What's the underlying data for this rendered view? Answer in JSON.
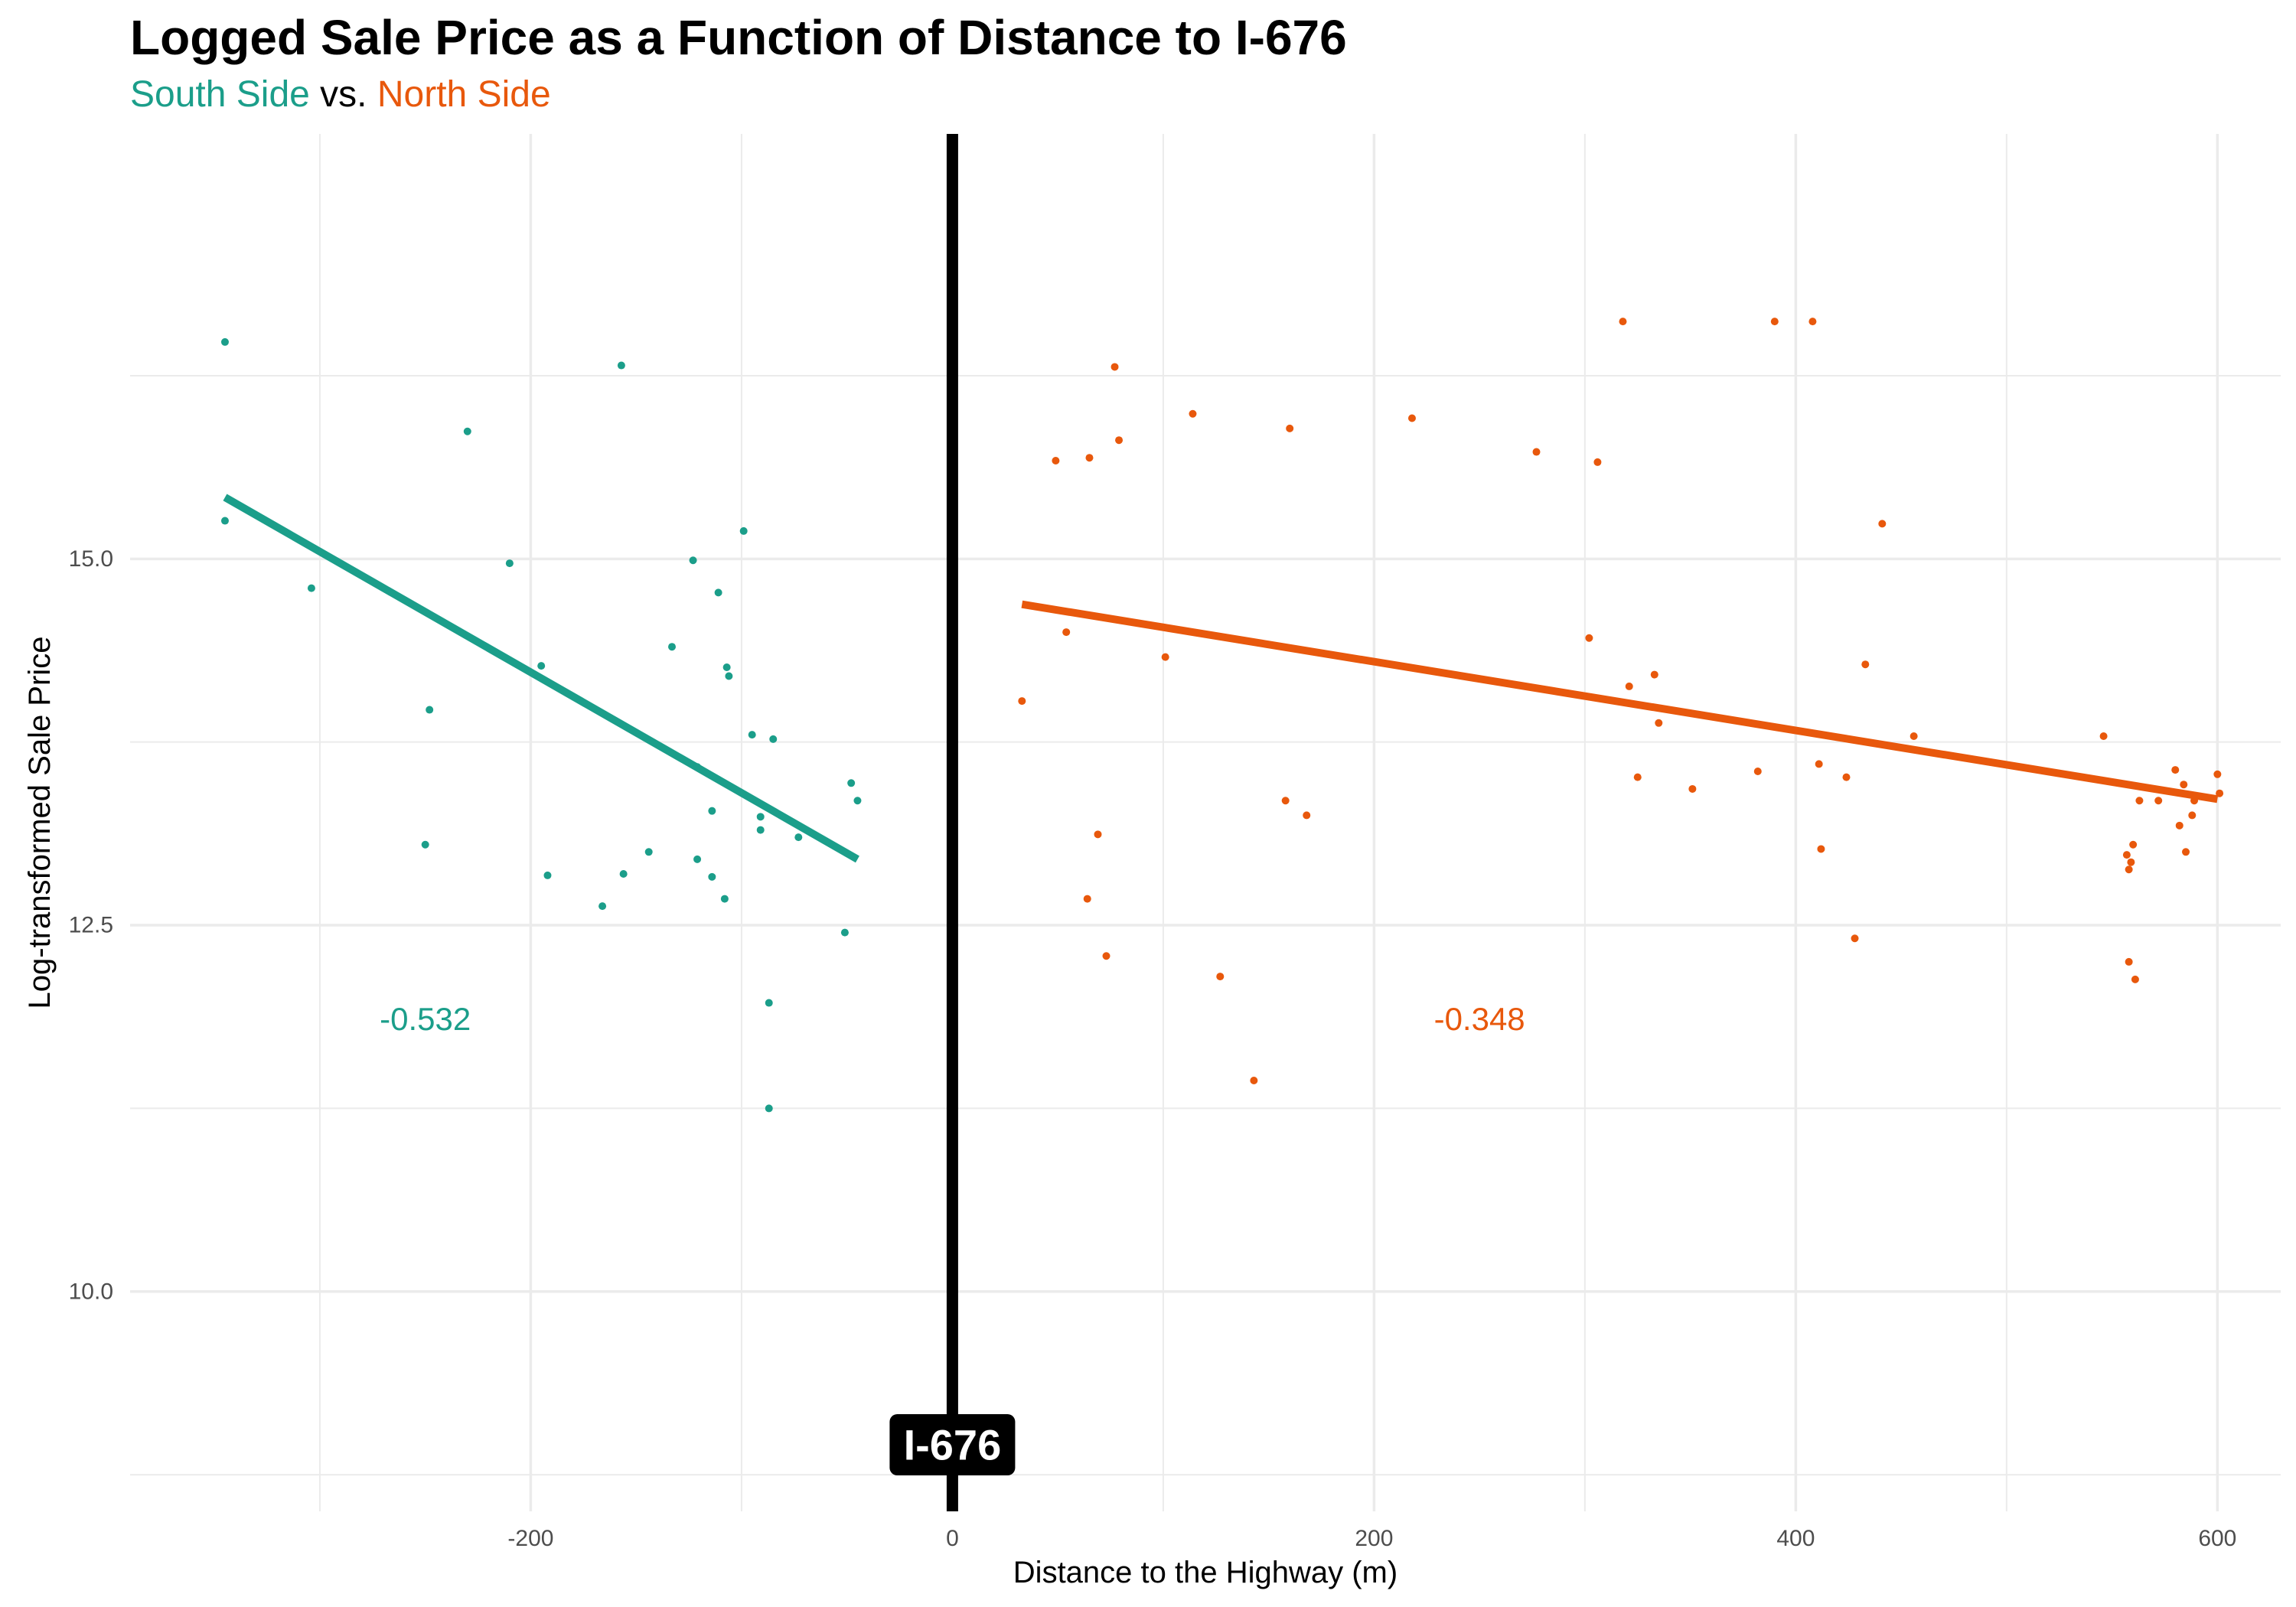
{
  "title": "Logged Sale Price as a Function of Distance to I-676",
  "subtitle": {
    "south": "South Side",
    "vs": " vs. ",
    "north": "North Side"
  },
  "colors": {
    "south": "#1b9e8a",
    "north": "#e8580c",
    "highway": "#000000",
    "grid": "#ebebeb"
  },
  "chart_data": {
    "type": "scatter",
    "title": "Logged Sale Price as a Function of Distance to I-676",
    "xlabel": "Distance to the Highway (m)",
    "ylabel": "Log-transformed Sale Price",
    "xlim": [
      -390,
      630
    ],
    "ylim": [
      8.5,
      17.9
    ],
    "x_ticks": [
      -200,
      0,
      200,
      400,
      600
    ],
    "x_tick_labels": [
      "-200",
      "0",
      "200",
      "400",
      "600"
    ],
    "y_ticks": [
      10.0,
      12.5,
      15.0
    ],
    "y_tick_labels": [
      "10.0",
      "12.5",
      "15.0"
    ],
    "grid": true,
    "cutoff": {
      "x": 0,
      "label": "I-676"
    },
    "series": [
      {
        "name": "South Side",
        "color": "#1b9e8a",
        "slope_label": "-0.532",
        "slope_label_pos": [
          -250,
          11.86
        ],
        "fit": {
          "x": [
            -345,
            -45
          ],
          "y": [
            15.42,
            12.95
          ]
        },
        "points": [
          [
            -345,
            16.48
          ],
          [
            -345,
            15.26
          ],
          [
            -304,
            14.8
          ],
          [
            -248,
            13.97
          ],
          [
            -250,
            13.05
          ],
          [
            -230,
            15.87
          ],
          [
            -210,
            14.97
          ],
          [
            -195,
            14.27
          ],
          [
            -192,
            12.84
          ],
          [
            -166,
            12.63
          ],
          [
            -157,
            16.32
          ],
          [
            -156,
            12.85
          ],
          [
            -144,
            13.0
          ],
          [
            -133,
            14.4
          ],
          [
            -123,
            14.99
          ],
          [
            -121,
            13.58
          ],
          [
            -121,
            12.95
          ],
          [
            -114,
            13.28
          ],
          [
            -114,
            12.83
          ],
          [
            -111,
            14.77
          ],
          [
            -108,
            12.68
          ],
          [
            -107,
            14.26
          ],
          [
            -106,
            14.2
          ],
          [
            -99,
            15.19
          ],
          [
            -95,
            13.8
          ],
          [
            -91,
            13.24
          ],
          [
            -91,
            13.15
          ],
          [
            -87,
            11.97
          ],
          [
            -87,
            11.25
          ],
          [
            -85,
            13.77
          ],
          [
            -73,
            13.1
          ],
          [
            -51,
            12.45
          ],
          [
            -48,
            13.47
          ],
          [
            -45,
            13.35
          ]
        ]
      },
      {
        "name": "North Side",
        "color": "#e8580c",
        "slope_label": "-0.348",
        "slope_label_pos": [
          250,
          11.86
        ],
        "fit": {
          "x": [
            33,
            600
          ],
          "y": [
            14.69,
            13.36
          ]
        },
        "points": [
          [
            33,
            14.03
          ],
          [
            49,
            15.67
          ],
          [
            54,
            14.5
          ],
          [
            64,
            12.68
          ],
          [
            65,
            15.69
          ],
          [
            69,
            13.12
          ],
          [
            73,
            12.29
          ],
          [
            77,
            16.31
          ],
          [
            79,
            15.81
          ],
          [
            101,
            14.33
          ],
          [
            127,
            12.15
          ],
          [
            114,
            15.99
          ],
          [
            143,
            11.44
          ],
          [
            158,
            13.35
          ],
          [
            160,
            15.89
          ],
          [
            168,
            13.25
          ],
          [
            218,
            15.96
          ],
          [
            277,
            15.73
          ],
          [
            302,
            14.46
          ],
          [
            306,
            15.66
          ],
          [
            318,
            16.62
          ],
          [
            321,
            14.13
          ],
          [
            325,
            13.51
          ],
          [
            333,
            14.21
          ],
          [
            335,
            13.88
          ],
          [
            351,
            13.43
          ],
          [
            382,
            13.55
          ],
          [
            390,
            16.62
          ],
          [
            408,
            16.62
          ],
          [
            411,
            13.6
          ],
          [
            412,
            13.02
          ],
          [
            424,
            13.51
          ],
          [
            428,
            12.41
          ],
          [
            433,
            14.28
          ],
          [
            441,
            15.24
          ],
          [
            456,
            13.79
          ],
          [
            546,
            13.79
          ],
          [
            557,
            12.98
          ],
          [
            558,
            12.88
          ],
          [
            558,
            12.25
          ],
          [
            559,
            12.93
          ],
          [
            560,
            13.05
          ],
          [
            561,
            12.13
          ],
          [
            563,
            13.35
          ],
          [
            572,
            13.35
          ],
          [
            580,
            13.56
          ],
          [
            582,
            13.18
          ],
          [
            584,
            13.46
          ],
          [
            585,
            13.0
          ],
          [
            588,
            13.25
          ],
          [
            589,
            13.35
          ],
          [
            600,
            13.53
          ],
          [
            601,
            13.4
          ]
        ]
      }
    ]
  }
}
